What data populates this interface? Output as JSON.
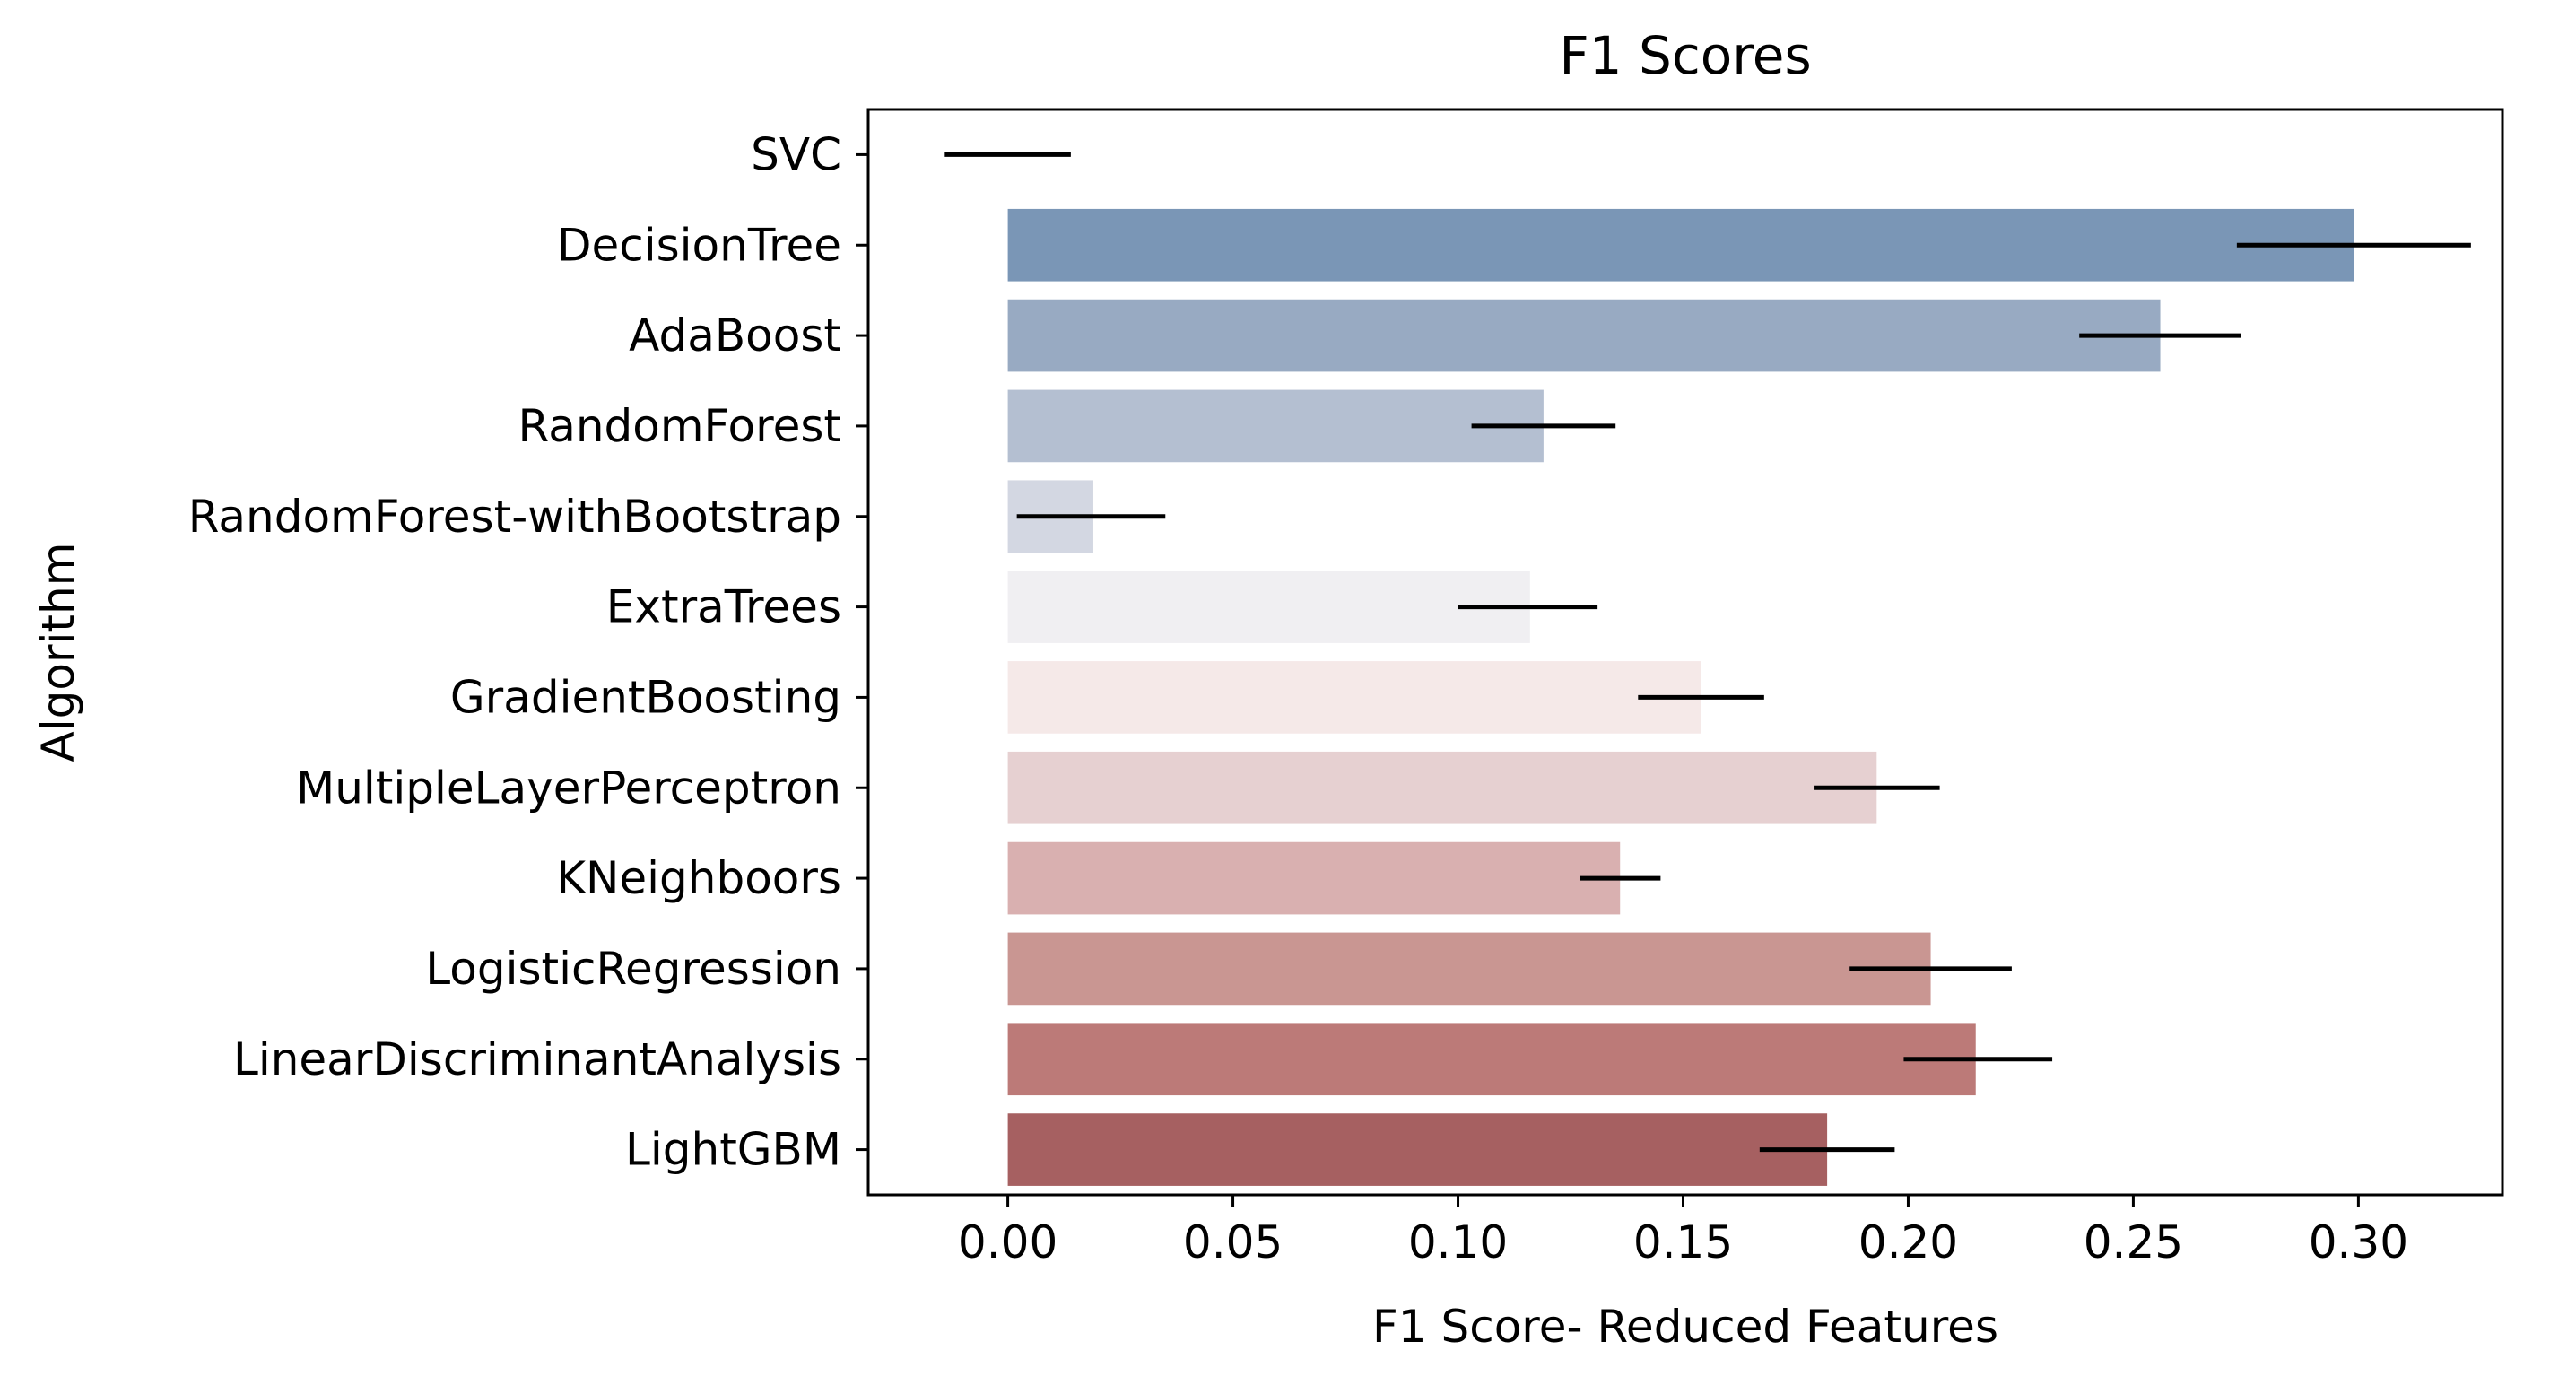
{
  "chart_data": {
    "type": "bar",
    "orientation": "horizontal",
    "title": "F1 Scores",
    "xlabel": "F1 Score- Reduced Features",
    "ylabel": "Algorithm",
    "xlim": [
      -0.031,
      0.332
    ],
    "xticks": [
      0.0,
      0.05,
      0.1,
      0.15,
      0.2,
      0.25,
      0.3
    ],
    "xtick_labels": [
      "0.00",
      "0.05",
      "0.10",
      "0.15",
      "0.20",
      "0.25",
      "0.30"
    ],
    "grid": false,
    "legend": "none",
    "categories": [
      "SVC",
      "DecisionTree",
      "AdaBoost",
      "RandomForest",
      "RandomForest-withBootstrap",
      "ExtraTrees",
      "GradientBoosting",
      "MultipleLayerPerceptron",
      "KNeighboors",
      "LogisticRegression",
      "LinearDiscriminantAnalysis",
      "LightGBM"
    ],
    "values": [
      0.0,
      0.299,
      0.256,
      0.119,
      0.019,
      0.116,
      0.154,
      0.193,
      0.136,
      0.205,
      0.215,
      0.182
    ],
    "error_low": [
      -0.014,
      0.273,
      0.238,
      0.103,
      0.002,
      0.1,
      0.14,
      0.179,
      0.127,
      0.187,
      0.199,
      0.167
    ],
    "error_high": [
      0.014,
      0.325,
      0.274,
      0.135,
      0.035,
      0.131,
      0.168,
      0.207,
      0.145,
      0.223,
      0.232,
      0.197
    ],
    "colors": [
      "#4c72a0",
      "#7a96b6",
      "#98aac2",
      "#b4bfd1",
      "#d3d7e2",
      "#f0eff2",
      "#f5e9e8",
      "#e6d0d1",
      "#d9b0b0",
      "#c99692",
      "#bc7a78",
      "#a66061"
    ]
  }
}
